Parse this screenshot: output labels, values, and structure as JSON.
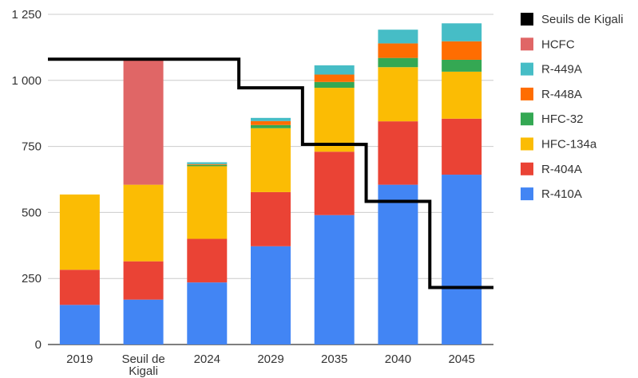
{
  "chart_data": {
    "type": "bar",
    "stacked": true,
    "categories": [
      "2019",
      "Seuil de Kigali",
      "2024",
      "2029",
      "2035",
      "2040",
      "2045"
    ],
    "category_lines": [
      [
        "2019"
      ],
      [
        "Seuil de",
        "Kigali"
      ],
      [
        "2024"
      ],
      [
        "2029"
      ],
      [
        "2035"
      ],
      [
        "2040"
      ],
      [
        "2045"
      ]
    ],
    "ylim": [
      0,
      1250
    ],
    "yticks": [
      0,
      250,
      500,
      750,
      1000,
      1250
    ],
    "ytick_labels": [
      "0",
      "250",
      "500",
      "750",
      "1 000",
      "1 250"
    ],
    "gridlines": true,
    "legend_position": "right",
    "series": [
      {
        "name": "R-410A",
        "color": "#4285f4",
        "values": [
          150,
          170,
          235,
          372,
          490,
          605,
          643
        ]
      },
      {
        "name": "R-404A",
        "color": "#ea4335",
        "values": [
          133,
          145,
          165,
          205,
          240,
          240,
          212
        ]
      },
      {
        "name": "HFC-134a",
        "color": "#fbbc04",
        "values": [
          285,
          290,
          275,
          242,
          242,
          205,
          178
        ]
      },
      {
        "name": "HFC-32",
        "color": "#34a853",
        "values": [
          0,
          0,
          5,
          12,
          22,
          35,
          45
        ]
      },
      {
        "name": "R-448A",
        "color": "#ff6d01",
        "values": [
          0,
          0,
          3,
          15,
          28,
          55,
          70
        ]
      },
      {
        "name": "R-449A",
        "color": "#46bdc6",
        "values": [
          0,
          0,
          7,
          12,
          35,
          52,
          68
        ]
      },
      {
        "name": "HCFC",
        "color": "#e06666",
        "values": [
          0,
          473,
          0,
          0,
          0,
          0,
          0
        ]
      }
    ],
    "kigali_threshold": {
      "name": "Seuils de Kigali",
      "color": "#000000",
      "steps": [
        {
          "from": "2019",
          "to": "2024",
          "value": 1080
        },
        {
          "from": "2029",
          "to": "2029",
          "value": 972
        },
        {
          "from": "2035",
          "to": "2035",
          "value": 758
        },
        {
          "from": "2040",
          "to": "2040",
          "value": 542
        },
        {
          "from": "2045",
          "to": "2045",
          "value": 216
        }
      ]
    },
    "legend": [
      {
        "name": "Seuils de Kigali",
        "color": "#000000"
      },
      {
        "name": "HCFC",
        "color": "#e06666"
      },
      {
        "name": "R-449A",
        "color": "#46bdc6"
      },
      {
        "name": "R-448A",
        "color": "#ff6d01"
      },
      {
        "name": "HFC-32",
        "color": "#34a853"
      },
      {
        "name": "HFC-134a",
        "color": "#fbbc04"
      },
      {
        "name": "R-404A",
        "color": "#ea4335"
      },
      {
        "name": "R-410A",
        "color": "#4285f4"
      }
    ]
  }
}
